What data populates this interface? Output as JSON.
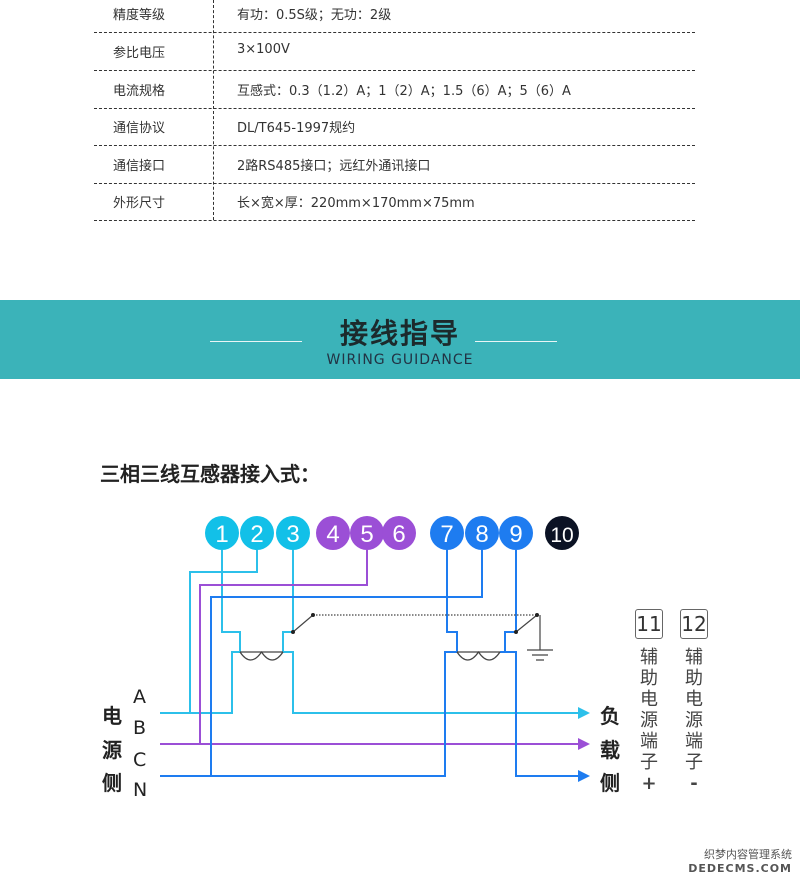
{
  "specs": [
    {
      "label": "精度等级",
      "value": "有功：0.5S级；无功：2级"
    },
    {
      "label": "参比电压",
      "value": "3×100V"
    },
    {
      "label": "电流规格",
      "value": "互感式：0.3（1.2）A；1（2）A；1.5（6）A；5（6）A"
    },
    {
      "label": "通信协议",
      "value": "DL/T645-1997规约"
    },
    {
      "label": "通信接口",
      "value": "2路RS485接口；远红外通讯接口"
    },
    {
      "label": "外形尺寸",
      "value": "长×宽×厚：220mm×170mm×75mm"
    }
  ],
  "section": {
    "title": "接线指导",
    "subtitle": "WIRING GUIDANCE",
    "band_color": "#3bb3b9"
  },
  "diagram": {
    "heading": "三相三线互感器接入式：",
    "terminals": [
      {
        "n": "1",
        "color": "#12c0e8"
      },
      {
        "n": "2",
        "color": "#12c0e8"
      },
      {
        "n": "3",
        "color": "#12c0e8"
      },
      {
        "n": "4",
        "color": "#9b4fd6"
      },
      {
        "n": "5",
        "color": "#9b4fd6"
      },
      {
        "n": "6",
        "color": "#9b4fd6"
      },
      {
        "n": "7",
        "color": "#1e7cf0"
      },
      {
        "n": "8",
        "color": "#1e7cf0"
      },
      {
        "n": "9",
        "color": "#1e7cf0"
      },
      {
        "n": "10",
        "color": "#0b1224"
      }
    ],
    "source_side": [
      "电",
      "源",
      "侧"
    ],
    "phases": [
      "A",
      "B",
      "C",
      "N"
    ],
    "load_side": [
      "负",
      "载",
      "侧"
    ],
    "aux": [
      {
        "n": "11",
        "text": [
          "辅",
          "助",
          "电",
          "源",
          "端",
          "子"
        ],
        "sign": "+"
      },
      {
        "n": "12",
        "text": [
          "辅",
          "助",
          "电",
          "源",
          "端",
          "子"
        ],
        "sign": "-"
      }
    ]
  },
  "watermark": [
    "织梦内容管理系统",
    "DEDECMS.COM"
  ]
}
